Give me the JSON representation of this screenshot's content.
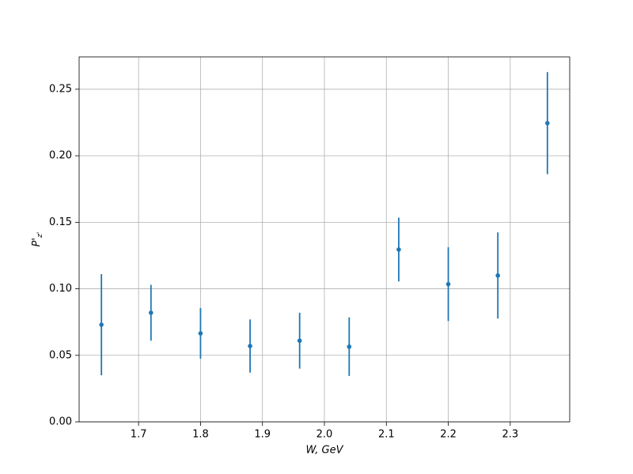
{
  "chart_data": {
    "type": "errorbar",
    "xlabel": "W, GeV",
    "ylabel": {
      "base": "P'",
      "subscript": "z'"
    },
    "x": [
      1.64,
      1.72,
      1.8,
      1.88,
      1.96,
      2.04,
      2.12,
      2.2,
      2.28,
      2.36
    ],
    "series": [
      {
        "color": "#1f77b4",
        "values": [
          0.073,
          0.082,
          0.0665,
          0.057,
          0.061,
          0.0565,
          0.1295,
          0.1035,
          0.11,
          0.2245
        ],
        "errors": [
          0.038,
          0.021,
          0.019,
          0.02,
          0.021,
          0.022,
          0.024,
          0.0277,
          0.0324,
          0.0384
        ]
      }
    ],
    "xlim": [
      1.604,
      2.396
    ],
    "ylim": [
      0,
      0.2743
    ],
    "xticks": [
      {
        "value": 1.7,
        "label": "1.7"
      },
      {
        "value": 1.8,
        "label": "1.8"
      },
      {
        "value": 1.9,
        "label": "1.9"
      },
      {
        "value": 2.0,
        "label": "2.0"
      },
      {
        "value": 2.1,
        "label": "2.1"
      },
      {
        "value": 2.2,
        "label": "2.2"
      },
      {
        "value": 2.3,
        "label": "2.3"
      }
    ],
    "yticks": [
      {
        "value": 0,
        "label": "0.00"
      },
      {
        "value": 0.05,
        "label": "0.05"
      },
      {
        "value": 0.1,
        "label": "0.10"
      },
      {
        "value": 0.15,
        "label": "0.15"
      },
      {
        "value": 0.2,
        "label": "0.20"
      },
      {
        "value": 0.25,
        "label": "0.25"
      }
    ],
    "grid": true
  }
}
